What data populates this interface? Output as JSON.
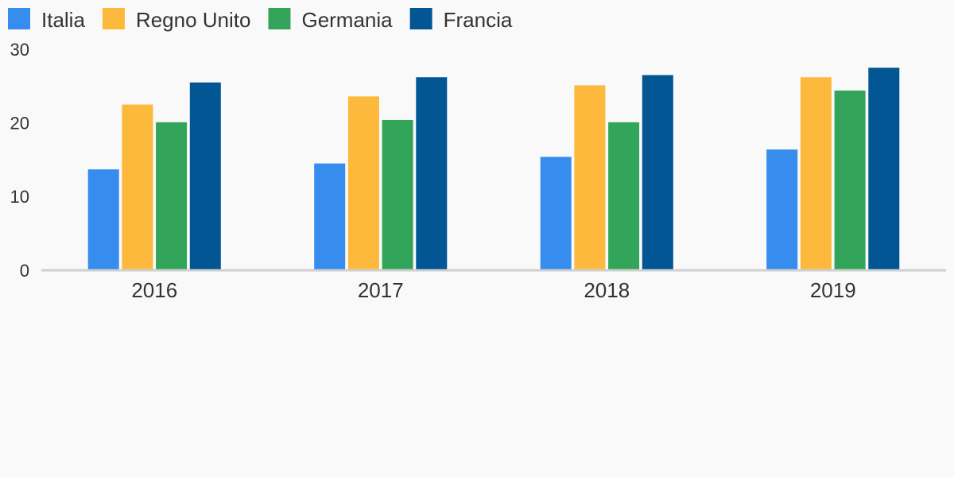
{
  "chart_data": {
    "type": "bar",
    "categories": [
      "2016",
      "2017",
      "2018",
      "2019"
    ],
    "series": [
      {
        "name": "Italia",
        "color": "#368ded",
        "values": [
          13.7,
          14.5,
          15.4,
          16.4
        ]
      },
      {
        "name": "Regno Unito",
        "color": "#fdb93b",
        "values": [
          22.5,
          23.6,
          25.1,
          26.2
        ]
      },
      {
        "name": "Germania",
        "color": "#33a55b",
        "values": [
          20.1,
          20.4,
          20.1,
          24.4
        ]
      },
      {
        "name": "Francia",
        "color": "#015693",
        "values": [
          25.5,
          26.2,
          26.5,
          27.5
        ]
      }
    ],
    "ylim": [
      0,
      30
    ],
    "yticks": [
      0,
      10,
      20,
      30
    ],
    "grid": false,
    "legend": "top"
  }
}
